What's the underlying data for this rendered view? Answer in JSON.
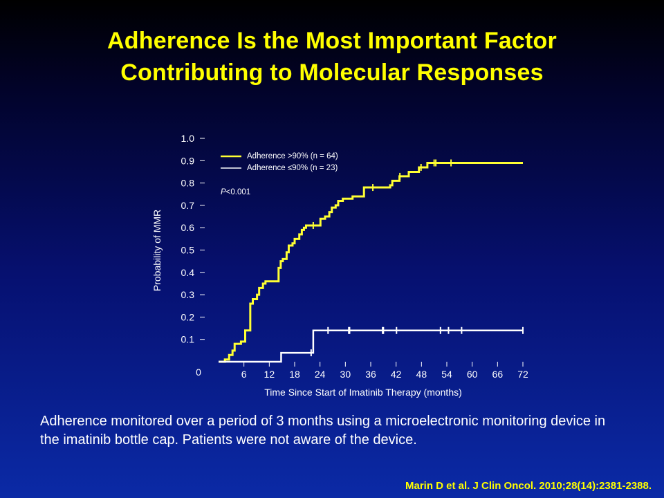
{
  "slide": {
    "title_line1": "Adherence Is the Most Important Factor",
    "title_line2": "Contributing to Molecular Responses",
    "footnote": "Adherence monitored over a period of 3 months using a microelectronic monitoring device in the imatinib bottle cap. Patients were not aware of the device.",
    "citation": "Marin D et al. J Clin Oncol. 2010;28(14):2381-2388."
  },
  "colors": {
    "title": "#ffff00",
    "series_high": "#ffff33",
    "series_low": "#ffffff",
    "axis": "#ffffff"
  },
  "chart_data": {
    "type": "line",
    "step": true,
    "xlabel": "Time Since Start of Imatinib Therapy (months)",
    "ylabel": "Probability of MMR",
    "xlim": [
      0,
      72
    ],
    "ylim": [
      0,
      1.0
    ],
    "origin_label": "0",
    "x_ticks": [
      6,
      12,
      18,
      24,
      30,
      36,
      42,
      48,
      54,
      60,
      66,
      72
    ],
    "y_ticks": [
      0.1,
      0.2,
      0.3,
      0.4,
      0.5,
      0.6,
      0.7,
      0.8,
      0.9,
      1.0
    ],
    "y_tick_labels": [
      "0.1",
      "0.2",
      "0.3",
      "0.4",
      "0.5",
      "0.6",
      "0.7",
      "0.8",
      "0.9",
      "1.0"
    ],
    "legend_position": "top-left",
    "annotation": {
      "italic": "P",
      "text": "<0.001"
    },
    "series": [
      {
        "name": "Adherence >90% (n = 64)",
        "color": "#ffff33",
        "points": [
          [
            0,
            0
          ],
          [
            1.5,
            0.01
          ],
          [
            2.5,
            0.03
          ],
          [
            3.3,
            0.05
          ],
          [
            3.8,
            0.08
          ],
          [
            5.3,
            0.09
          ],
          [
            6.3,
            0.14
          ],
          [
            7.5,
            0.26
          ],
          [
            8.1,
            0.28
          ],
          [
            9.1,
            0.3
          ],
          [
            9.6,
            0.33
          ],
          [
            10.5,
            0.35
          ],
          [
            11.1,
            0.36
          ],
          [
            14.2,
            0.42
          ],
          [
            14.7,
            0.45
          ],
          [
            15.2,
            0.46
          ],
          [
            16.1,
            0.49
          ],
          [
            16.6,
            0.52
          ],
          [
            17.5,
            0.53
          ],
          [
            18.0,
            0.55
          ],
          [
            19.1,
            0.57
          ],
          [
            19.7,
            0.59
          ],
          [
            20.2,
            0.6
          ],
          [
            20.7,
            0.61
          ],
          [
            24.1,
            0.64
          ],
          [
            25.2,
            0.65
          ],
          [
            26.2,
            0.67
          ],
          [
            26.8,
            0.69
          ],
          [
            27.7,
            0.7
          ],
          [
            28.3,
            0.72
          ],
          [
            29.4,
            0.73
          ],
          [
            31.7,
            0.74
          ],
          [
            34.4,
            0.78
          ],
          [
            40.6,
            0.79
          ],
          [
            41.1,
            0.81
          ],
          [
            42.8,
            0.83
          ],
          [
            45.0,
            0.85
          ],
          [
            47.4,
            0.87
          ],
          [
            49.4,
            0.89
          ],
          [
            55.0,
            0.89
          ],
          [
            72.0,
            0.89
          ]
        ],
        "censor_x": [
          22.4,
          36.5,
          42.9,
          47.9,
          51.0,
          51.4,
          55.0
        ]
      },
      {
        "name": "Adherence ≤90% (n = 23)",
        "color": "#ffffff",
        "points": [
          [
            0,
            0
          ],
          [
            14.5,
            0
          ],
          [
            14.8,
            0.04
          ],
          [
            22.0,
            0.04
          ],
          [
            22.4,
            0.14
          ],
          [
            72.0,
            0.14
          ]
        ],
        "censor_x": [
          21.9,
          25.9,
          30.8,
          31.0,
          38.8,
          39.0,
          42.1,
          52.5,
          54.4,
          57.5,
          72.0
        ]
      }
    ]
  }
}
